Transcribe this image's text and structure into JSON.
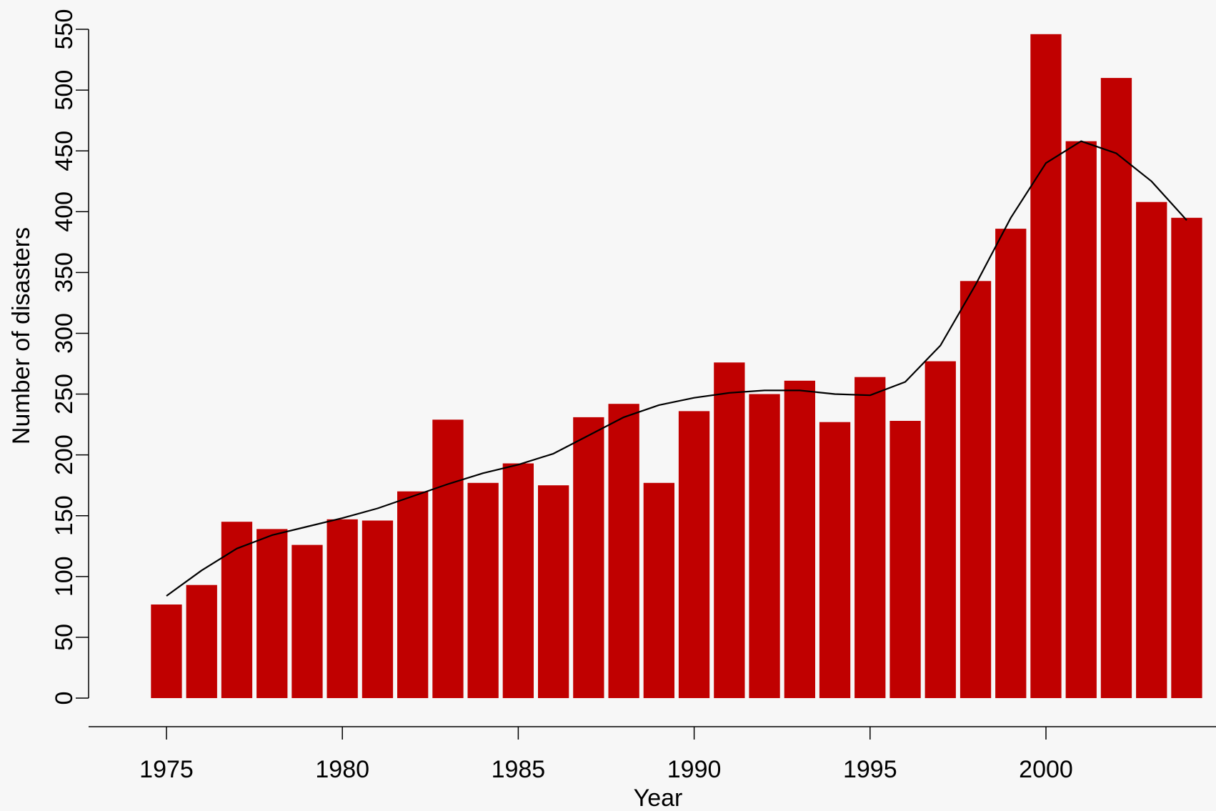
{
  "chart_data": {
    "type": "bar",
    "title": "",
    "xlabel": "Year",
    "ylabel": "Number of disasters",
    "x": [
      1975,
      1976,
      1977,
      1978,
      1979,
      1980,
      1981,
      1982,
      1983,
      1984,
      1985,
      1986,
      1987,
      1988,
      1989,
      1990,
      1991,
      1992,
      1993,
      1994,
      1995,
      1996,
      1997,
      1998,
      1999,
      2000,
      2001,
      2002,
      2003,
      2004
    ],
    "values": [
      77,
      93,
      145,
      139,
      126,
      147,
      146,
      170,
      229,
      177,
      193,
      175,
      231,
      242,
      177,
      236,
      276,
      250,
      261,
      227,
      264,
      228,
      277,
      343,
      386,
      546,
      458,
      510,
      408,
      395
    ],
    "trend": [
      84,
      105,
      123,
      134,
      141,
      148,
      156,
      166,
      176,
      185,
      192,
      201,
      216,
      231,
      241,
      247,
      251,
      253,
      253,
      250,
      249,
      260,
      290,
      340,
      395,
      440,
      458,
      448,
      425,
      393
    ],
    "xlim": [
      1970.5,
      2005
    ],
    "ylim": [
      0,
      550
    ],
    "xticks": [
      "1975",
      "1980",
      "1985",
      "1990",
      "1995",
      "2000"
    ],
    "xtick_values": [
      1975,
      1980,
      1985,
      1990,
      1995,
      2000
    ],
    "yticks": [
      "0",
      "50",
      "100",
      "150",
      "200",
      "250",
      "300",
      "350",
      "400",
      "450",
      "500",
      "550"
    ],
    "ytick_values": [
      0,
      50,
      100,
      150,
      200,
      250,
      300,
      350,
      400,
      450,
      500,
      550
    ],
    "bar_color": "#c00000",
    "line_color": "#000000",
    "grid": false,
    "legend": "none"
  }
}
